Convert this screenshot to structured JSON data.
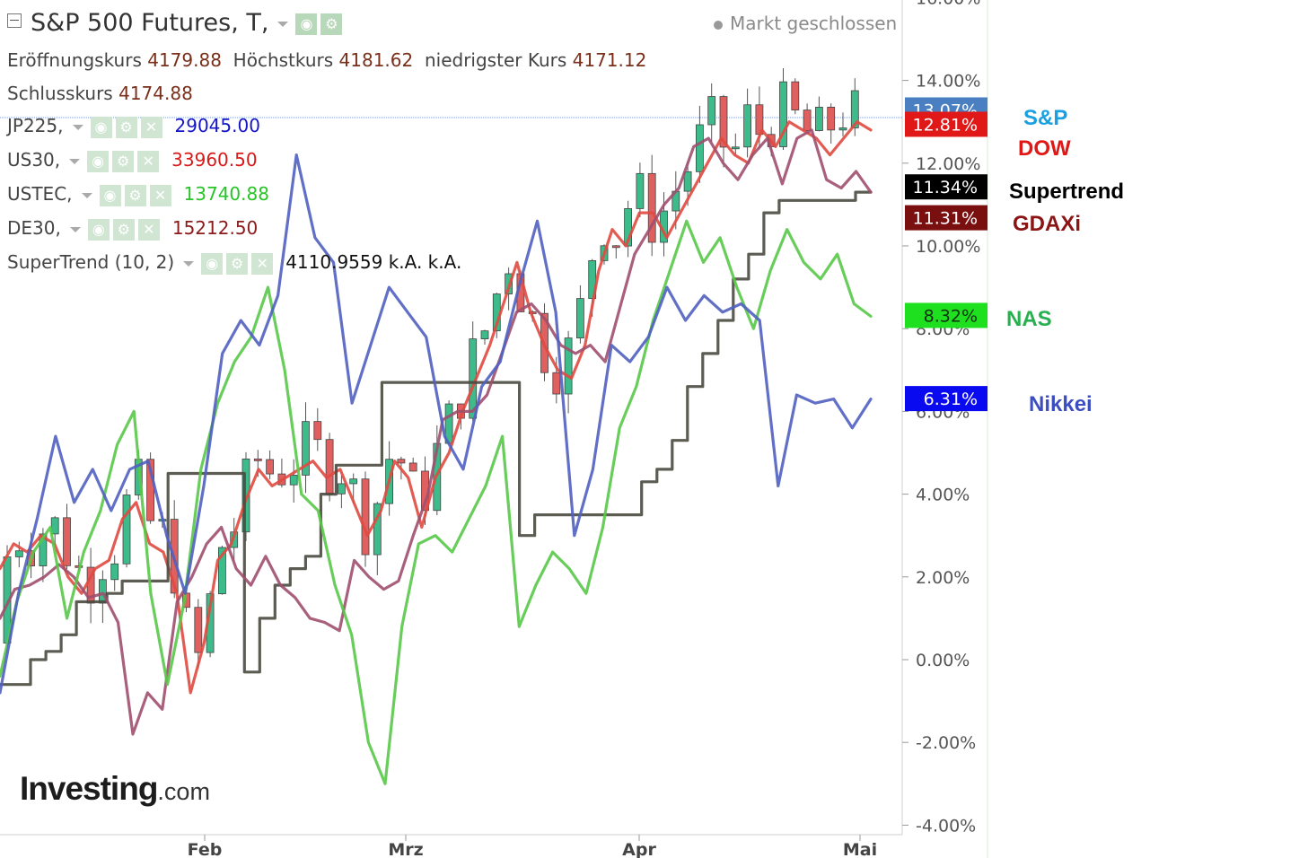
{
  "header": {
    "title": "S&P 500 Futures, T,",
    "status": "Markt geschlossen",
    "ohlc": {
      "open_label": "Eröffnungskurs",
      "open": "4179.88",
      "high_label": "Höchstkurs",
      "high": "4181.62",
      "low_label": "niedrigster Kurs",
      "low": "4171.12",
      "close_label": "Schlusskurs",
      "close": "4174.88"
    },
    "indicators": [
      {
        "name": "JP225,",
        "value": "29045.00",
        "color": "#1515c8"
      },
      {
        "name": "US30,",
        "value": "33960.50",
        "color": "#d71a1a"
      },
      {
        "name": "USTEC,",
        "value": "13740.88",
        "color": "#27c427"
      },
      {
        "name": "DE30,",
        "value": "15212.50",
        "color": "#8b1a1a"
      },
      {
        "name": "SuperTrend (10, 2)",
        "value": "4110.9559  k.A.  k.A.",
        "color": "#111111"
      }
    ]
  },
  "logo": {
    "main": "Investing",
    "suffix": ".com"
  },
  "chart_data": {
    "type": "line",
    "x_labels": [
      "Feb",
      "Mrz",
      "Apr",
      "Mai"
    ],
    "y_ticks": [
      "16.00%",
      "14.00%",
      "12.00%",
      "10.00%",
      "8.00%",
      "6.00%",
      "4.00%",
      "2.00%",
      "0.00%",
      "-2.00%",
      "-4.00%"
    ],
    "y_tick_values": [
      16,
      14,
      12,
      10,
      8,
      6,
      4,
      2,
      0,
      -2,
      -4
    ],
    "ylim": [
      -4,
      16
    ],
    "series": [
      {
        "name": "S&P",
        "badge": "13.07%",
        "badge_color": "#4a7fc1",
        "color": "#c9474b"
      },
      {
        "name": "DOW",
        "badge": "12.81%",
        "badge_color": "#e01818",
        "color": "#e04a40",
        "values": [
          2.2,
          2.8,
          2.6,
          3.0,
          2.8,
          2.0,
          1.6,
          2.2,
          2.4,
          3.4,
          3.8,
          2.8,
          2.6,
          1.6,
          -0.8,
          0.4,
          2.4,
          2.8,
          3.8,
          4.6,
          4.2,
          4.4,
          4.6,
          4.8,
          4.4,
          4.6,
          3.8,
          3.0,
          3.6,
          4.8,
          4.4,
          3.2,
          4.4,
          5.0,
          6.0,
          6.8,
          7.6,
          8.6,
          9.6,
          8.4,
          7.6,
          7.0,
          6.8,
          7.6,
          9.4,
          10.4,
          10.0,
          10.8,
          10.8,
          10.2,
          10.8,
          11.4,
          12.0,
          12.6,
          12.2,
          12.0,
          12.8,
          12.4,
          13.0,
          12.8,
          12.6,
          12.2,
          12.6,
          13.0,
          12.8
        ]
      },
      {
        "name": "Supertrend",
        "badge": "11.34%",
        "badge_color": "#000000",
        "color": "#4a4a40",
        "values": [
          -0.6,
          -0.6,
          0.0,
          0.2,
          0.6,
          1.4,
          1.4,
          1.6,
          1.9,
          1.9,
          1.9,
          4.5,
          4.5,
          4.5,
          4.5,
          4.5,
          -0.3,
          1.0,
          1.8,
          2.2,
          2.5,
          4.0,
          4.7,
          4.7,
          4.7,
          6.7,
          6.7,
          6.7,
          6.7,
          6.7,
          6.7,
          6.7,
          6.7,
          6.7,
          3.0,
          3.5,
          3.5,
          3.5,
          3.5,
          3.5,
          3.5,
          3.5,
          4.3,
          4.6,
          5.3,
          6.6,
          7.4,
          8.2,
          9.2,
          9.8,
          10.8,
          11.1,
          11.1,
          11.1,
          11.1,
          11.1,
          11.3,
          11.3
        ]
      },
      {
        "name": "GDAXi",
        "badge": "11.31%",
        "badge_color": "#7a0f0f",
        "color": "#9e4f6e",
        "values": [
          1.0,
          1.7,
          1.8,
          2.0,
          2.3,
          2.0,
          1.5,
          1.6,
          0.9,
          -1.8,
          -0.8,
          -1.2,
          1.4,
          2.0,
          2.8,
          3.2,
          2.2,
          1.8,
          2.5,
          1.8,
          1.5,
          1.0,
          0.9,
          0.7,
          2.4,
          2.0,
          1.7,
          1.9,
          3.0,
          4.0,
          5.8,
          6.0,
          6.0,
          6.4,
          7.4,
          8.4,
          8.6,
          8.2,
          7.6,
          7.4,
          7.6,
          7.2,
          8.5,
          9.8,
          10.4,
          11.0,
          11.4,
          12.4,
          12.6,
          12.0,
          11.6,
          12.2,
          12.6,
          11.5,
          12.6,
          12.8,
          11.6,
          11.4,
          11.8,
          11.3
        ]
      },
      {
        "name": "NAS",
        "badge": "8.32%",
        "badge_color": "#1ee01e",
        "color": "#58c848",
        "values": [
          -0.4,
          1.4,
          2.6,
          3.2,
          1.0,
          2.6,
          3.6,
          5.2,
          6.0,
          1.6,
          -0.6,
          1.4,
          4.6,
          6.2,
          7.2,
          7.8,
          9.0,
          7.0,
          4.0,
          3.6,
          1.8,
          0.6,
          -2.0,
          -3.0,
          0.8,
          2.8,
          3.0,
          2.6,
          3.4,
          4.2,
          5.4,
          0.8,
          1.8,
          2.6,
          2.2,
          1.6,
          3.2,
          5.6,
          6.6,
          8.2,
          9.4,
          10.6,
          9.6,
          10.2,
          9.0,
          8.0,
          9.4,
          10.4,
          9.6,
          9.2,
          9.8,
          8.6,
          8.3
        ]
      },
      {
        "name": "Nikkei",
        "badge": "6.31%",
        "badge_color": "#0a0af0",
        "color": "#5060c0",
        "values": [
          -0.8,
          1.6,
          3.4,
          5.4,
          3.8,
          4.6,
          3.6,
          4.6,
          4.8,
          3.0,
          1.6,
          4.2,
          7.4,
          8.2,
          7.6,
          8.8,
          12.2,
          10.2,
          9.6,
          6.2,
          7.6,
          9.0,
          8.4,
          7.8,
          5.4,
          4.6,
          6.6,
          7.2,
          9.0,
          10.6,
          8.4,
          3.0,
          4.6,
          7.6,
          7.2,
          7.8,
          9.0,
          8.2,
          8.8,
          8.4,
          8.6,
          8.2,
          4.2,
          6.4,
          6.2,
          6.3,
          5.6,
          6.3
        ]
      }
    ]
  }
}
